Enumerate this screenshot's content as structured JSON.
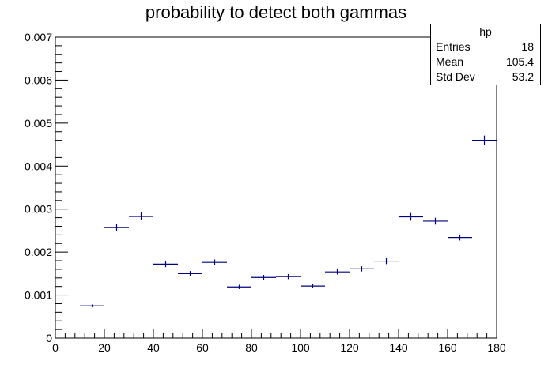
{
  "chart_data": {
    "type": "scatter",
    "title": "probability to detect both gammas",
    "xlabel": "",
    "ylabel": "",
    "xlim": [
      0,
      180
    ],
    "ylim": [
      0,
      0.007
    ],
    "x_ticks": [
      "0",
      "20",
      "40",
      "60",
      "80",
      "100",
      "120",
      "140",
      "160",
      "180"
    ],
    "y_ticks": [
      "0",
      "0.001",
      "0.002",
      "0.003",
      "0.004",
      "0.005",
      "0.006",
      "0.007"
    ],
    "bin_width": 10,
    "x": [
      15,
      25,
      35,
      45,
      55,
      65,
      75,
      85,
      95,
      105,
      115,
      125,
      135,
      145,
      155,
      165,
      175
    ],
    "values": [
      0.00075,
      0.00257,
      0.00283,
      0.00172,
      0.0015,
      0.00176,
      0.00119,
      0.00141,
      0.00143,
      0.00121,
      0.00154,
      0.00161,
      0.00179,
      0.00282,
      0.00272,
      0.00234,
      0.0046
    ],
    "errors": [
      3e-05,
      8e-05,
      9e-05,
      7e-05,
      6e-05,
      7e-05,
      5e-05,
      6e-05,
      6e-05,
      5e-05,
      6e-05,
      6e-05,
      7e-05,
      9e-05,
      8e-05,
      7e-05,
      0.00011
    ],
    "marker_color": "#000080",
    "grid": false,
    "legend_placement": "top-right"
  },
  "stats": {
    "name": "hp",
    "rows": [
      {
        "label": "Entries",
        "value": "18"
      },
      {
        "label": "Mean",
        "value": "105.4"
      },
      {
        "label": "Std Dev",
        "value": "53.2"
      }
    ]
  }
}
